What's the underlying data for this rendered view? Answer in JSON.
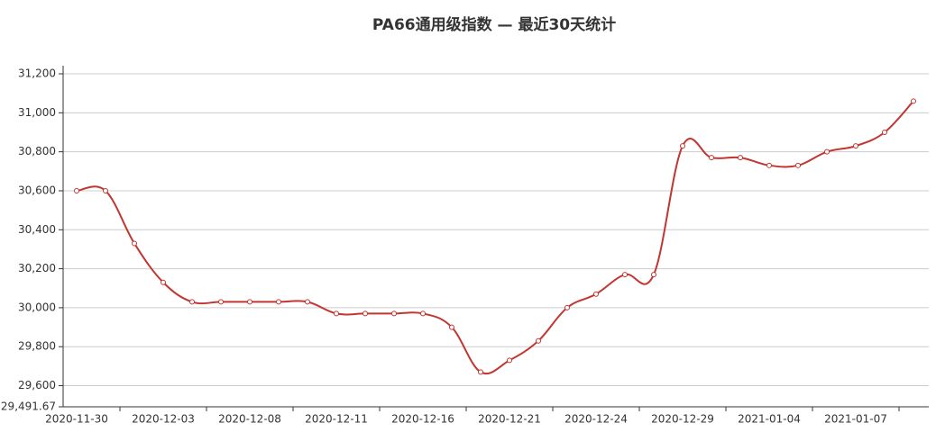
{
  "chart_data": {
    "type": "line",
    "title": "PA66通用级指数 — 最近30天统计",
    "categories": [
      "2020-11-30",
      null,
      null,
      "2020-12-03",
      null,
      null,
      "2020-12-08",
      null,
      null,
      "2020-12-11",
      null,
      null,
      "2020-12-16",
      null,
      null,
      "2020-12-21",
      null,
      null,
      "2020-12-24",
      null,
      null,
      "2020-12-29",
      null,
      null,
      "2021-01-04",
      null,
      null,
      "2021-01-07",
      null,
      null
    ],
    "series": [
      {
        "name": "PA66通用级",
        "color": "#c23531",
        "values": [
          30600,
          30600,
          30330,
          30130,
          30030,
          30030,
          30030,
          30030,
          30030,
          29970,
          29970,
          29970,
          29970,
          29900,
          29670,
          29730,
          29830,
          30000,
          30070,
          30170,
          30170,
          30830,
          30770,
          30770,
          30730,
          30730,
          30800,
          30830,
          30900,
          31060
        ]
      }
    ],
    "ylim": [
      29491.67,
      31241.67
    ],
    "yticks": [
      {
        "value": 29491.67,
        "label": "29,491.67"
      },
      {
        "value": 29600,
        "label": "29,600"
      },
      {
        "value": 29800,
        "label": "29,800"
      },
      {
        "value": 30000,
        "label": "30,000"
      },
      {
        "value": 30200,
        "label": "30,200"
      },
      {
        "value": 30400,
        "label": "30,400"
      },
      {
        "value": 30600,
        "label": "30,600"
      },
      {
        "value": 30800,
        "label": "30,800"
      },
      {
        "value": 31000,
        "label": "31,000"
      },
      {
        "value": 31200,
        "label": "31,200"
      }
    ],
    "grid": true,
    "smooth": true
  }
}
